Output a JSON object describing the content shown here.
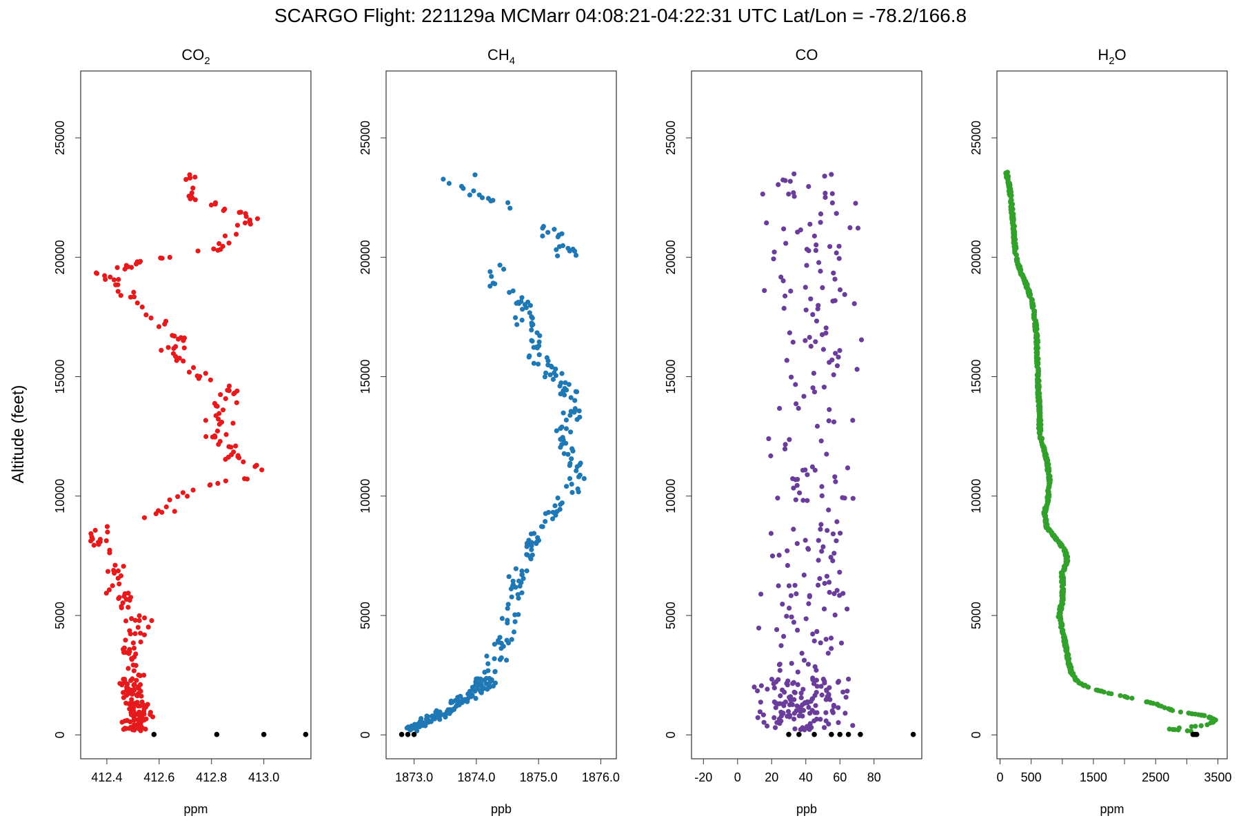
{
  "title": "SCARGO Flight: 221129a  MCMarr  04:08:21-04:22:31 UTC  Lat/Lon = -78.2/166.8",
  "ylabel": "Altitude (feet)",
  "chart_data": [
    {
      "type": "scatter",
      "title_main": "CO",
      "title_sub": "2",
      "xlabel": "ppm",
      "color": "#e41a1c",
      "ground_color": "#000000",
      "xlim": [
        412.3,
        413.18
      ],
      "ylim": [
        -1000,
        27800
      ],
      "xticks": [
        412.4,
        412.6,
        412.8,
        413.0
      ],
      "xtick_labels": [
        "412.4",
        "412.6",
        "412.8",
        "413.0"
      ],
      "yticks": [
        0,
        5000,
        10000,
        15000,
        20000,
        25000
      ],
      "ytick_labels": [
        "0",
        "5000",
        "10000",
        "15000",
        "20000",
        "25000"
      ],
      "profile": [
        [
          412.5,
          200
        ],
        [
          412.52,
          600
        ],
        [
          412.53,
          1000
        ],
        [
          412.5,
          1500
        ],
        [
          412.5,
          2000
        ],
        [
          412.5,
          2800
        ],
        [
          412.49,
          3600
        ],
        [
          412.5,
          4300
        ],
        [
          412.52,
          4800
        ],
        [
          412.47,
          5500
        ],
        [
          412.44,
          6100
        ],
        [
          412.43,
          6700
        ],
        [
          412.46,
          7300
        ],
        [
          412.4,
          7800
        ],
        [
          412.34,
          8300
        ],
        [
          412.42,
          8800
        ],
        [
          412.52,
          9000
        ],
        [
          412.62,
          9300
        ],
        [
          412.66,
          9800
        ],
        [
          412.73,
          10200
        ],
        [
          412.86,
          10600
        ],
        [
          412.98,
          10800
        ],
        [
          412.94,
          11300
        ],
        [
          412.88,
          11700
        ],
        [
          412.84,
          12200
        ],
        [
          412.81,
          12700
        ],
        [
          412.84,
          13300
        ],
        [
          412.86,
          13900
        ],
        [
          412.89,
          14400
        ],
        [
          412.8,
          14800
        ],
        [
          412.75,
          15200
        ],
        [
          412.69,
          15600
        ],
        [
          412.64,
          16000
        ],
        [
          412.7,
          16400
        ],
        [
          412.64,
          16900
        ],
        [
          412.6,
          17400
        ],
        [
          412.55,
          17900
        ],
        [
          412.47,
          18400
        ],
        [
          412.43,
          18900
        ],
        [
          412.4,
          19300
        ],
        [
          412.46,
          19600
        ],
        [
          412.55,
          19900
        ],
        [
          412.7,
          20100
        ],
        [
          412.85,
          20400
        ],
        [
          412.86,
          20900
        ],
        [
          412.93,
          21400
        ],
        [
          412.96,
          21800
        ],
        [
          412.8,
          22100
        ],
        [
          412.7,
          22600
        ],
        [
          412.7,
          23000
        ],
        [
          412.7,
          23500
        ]
      ],
      "spread": [
        0.05,
        0.06
      ],
      "ground": [
        412.58,
        412.82,
        413.0,
        413.16
      ]
    },
    {
      "type": "scatter",
      "title_main": "CH",
      "title_sub": "4",
      "xlabel": "ppb",
      "color": "#1f78b4",
      "ground_color": "#000000",
      "xlim": [
        1872.55,
        1876.25
      ],
      "ylim": [
        -1000,
        27800
      ],
      "xticks": [
        1873.0,
        1874.0,
        1875.0,
        1876.0
      ],
      "xtick_labels": [
        "1873.0",
        "1874.0",
        "1875.0",
        "1876.0"
      ],
      "yticks": [
        0,
        5000,
        10000,
        15000,
        20000,
        25000
      ],
      "ytick_labels": [
        "0",
        "5000",
        "10000",
        "15000",
        "20000",
        "25000"
      ],
      "profile": [
        [
          1872.8,
          100
        ],
        [
          1873.1,
          400
        ],
        [
          1873.3,
          700
        ],
        [
          1873.55,
          1100
        ],
        [
          1873.8,
          1500
        ],
        [
          1874.1,
          1900
        ],
        [
          1874.2,
          2500
        ],
        [
          1874.35,
          3300
        ],
        [
          1874.5,
          4200
        ],
        [
          1874.6,
          5100
        ],
        [
          1874.65,
          6000
        ],
        [
          1874.7,
          6800
        ],
        [
          1874.8,
          7600
        ],
        [
          1874.95,
          8300
        ],
        [
          1875.05,
          8900
        ],
        [
          1875.25,
          9400
        ],
        [
          1875.45,
          9800
        ],
        [
          1875.6,
          10300
        ],
        [
          1875.7,
          10800
        ],
        [
          1875.6,
          11300
        ],
        [
          1875.45,
          11800
        ],
        [
          1875.3,
          12300
        ],
        [
          1875.5,
          12800
        ],
        [
          1875.55,
          13300
        ],
        [
          1875.55,
          13900
        ],
        [
          1875.4,
          14500
        ],
        [
          1875.2,
          15100
        ],
        [
          1875.05,
          15700
        ],
        [
          1874.95,
          16300
        ],
        [
          1874.85,
          16900
        ],
        [
          1874.8,
          17500
        ],
        [
          1874.65,
          18100
        ],
        [
          1874.4,
          18700
        ],
        [
          1874.2,
          19200
        ],
        [
          1874.3,
          19700
        ],
        [
          1875.5,
          20100
        ],
        [
          1875.3,
          20700
        ],
        [
          1875.1,
          21300
        ],
        [
          1874.75,
          21800
        ],
        [
          1874.4,
          22300
        ],
        [
          1873.8,
          22800
        ],
        [
          1873.4,
          23200
        ],
        [
          1873.9,
          23500
        ]
      ],
      "spread": [
        0.18,
        0.2
      ],
      "ground": [
        1872.8,
        1872.9,
        1873.0
      ]
    },
    {
      "type": "scatter",
      "title_main": "CO",
      "title_sub": "",
      "xlabel": "ppb",
      "color": "#6a3d9a",
      "ground_color": "#000000",
      "xlim": [
        -27,
        108
      ],
      "ylim": [
        -1000,
        27800
      ],
      "xticks": [
        -20,
        0,
        20,
        40,
        60,
        80
      ],
      "xtick_labels": [
        "-20",
        "0",
        "20",
        "40",
        "60",
        "80"
      ],
      "yticks": [
        0,
        5000,
        10000,
        15000,
        20000,
        25000
      ],
      "ytick_labels": [
        "0",
        "5000",
        "10000",
        "15000",
        "20000",
        "25000"
      ],
      "profile": [
        [
          38,
          200
        ],
        [
          40,
          700
        ],
        [
          39,
          1300
        ],
        [
          38,
          2000
        ],
        [
          40,
          3000
        ],
        [
          40,
          4000
        ],
        [
          40,
          5000
        ],
        [
          42,
          6000
        ],
        [
          40,
          7000
        ],
        [
          40,
          8000
        ],
        [
          42,
          9000
        ],
        [
          40,
          10000
        ],
        [
          42,
          11000
        ],
        [
          40,
          12000
        ],
        [
          42,
          13000
        ],
        [
          42,
          14000
        ],
        [
          42,
          15000
        ],
        [
          44,
          16000
        ],
        [
          42,
          17000
        ],
        [
          44,
          18000
        ],
        [
          42,
          19000
        ],
        [
          44,
          20000
        ],
        [
          44,
          21000
        ],
        [
          46,
          22000
        ],
        [
          40,
          23000
        ],
        [
          42,
          23500
        ]
      ],
      "spread": [
        28,
        30
      ],
      "ground": [
        30,
        36,
        45,
        55,
        60,
        65,
        72,
        103
      ]
    },
    {
      "type": "scatter",
      "title_main": "H",
      "title_sub": "2",
      "title_tail": "O",
      "xlabel": "ppm",
      "color": "#33a02c",
      "ground_color": "#000000",
      "xlim": [
        -50,
        3650
      ],
      "ylim": [
        -1000,
        27800
      ],
      "xticks": [
        0,
        500,
        1500,
        2500,
        3500
      ],
      "xtick_labels": [
        "0",
        "500",
        "1500",
        "2500",
        "3500"
      ],
      "minor_xticks": [
        1000,
        2000,
        3000
      ],
      "yticks": [
        0,
        5000,
        10000,
        15000,
        20000,
        25000
      ],
      "ytick_labels": [
        "0",
        "5000",
        "10000",
        "15000",
        "20000",
        "25000"
      ],
      "profile": [
        [
          3100,
          150
        ],
        [
          2700,
          250
        ],
        [
          3300,
          400
        ],
        [
          3480,
          600
        ],
        [
          3300,
          800
        ],
        [
          2800,
          1000
        ],
        [
          2500,
          1300
        ],
        [
          2000,
          1600
        ],
        [
          1500,
          1900
        ],
        [
          1250,
          2200
        ],
        [
          1150,
          2600
        ],
        [
          1100,
          3100
        ],
        [
          1050,
          3800
        ],
        [
          1000,
          4400
        ],
        [
          950,
          5000
        ],
        [
          1000,
          5600
        ],
        [
          1010,
          6200
        ],
        [
          1000,
          6800
        ],
        [
          1080,
          7300
        ],
        [
          1050,
          7700
        ],
        [
          900,
          8200
        ],
        [
          750,
          8700
        ],
        [
          720,
          9300
        ],
        [
          780,
          10000
        ],
        [
          790,
          10700
        ],
        [
          760,
          11400
        ],
        [
          700,
          12000
        ],
        [
          640,
          12600
        ],
        [
          640,
          13400
        ],
        [
          620,
          14200
        ],
        [
          610,
          15000
        ],
        [
          600,
          15800
        ],
        [
          590,
          16600
        ],
        [
          560,
          17400
        ],
        [
          520,
          18100
        ],
        [
          430,
          18800
        ],
        [
          330,
          19400
        ],
        [
          260,
          20000
        ],
        [
          230,
          20700
        ],
        [
          210,
          21400
        ],
        [
          190,
          22000
        ],
        [
          170,
          22600
        ],
        [
          130,
          23200
        ],
        [
          100,
          23600
        ]
      ],
      "spread": [
        15,
        20
      ],
      "ground": [
        3100,
        3130,
        3160
      ]
    }
  ]
}
